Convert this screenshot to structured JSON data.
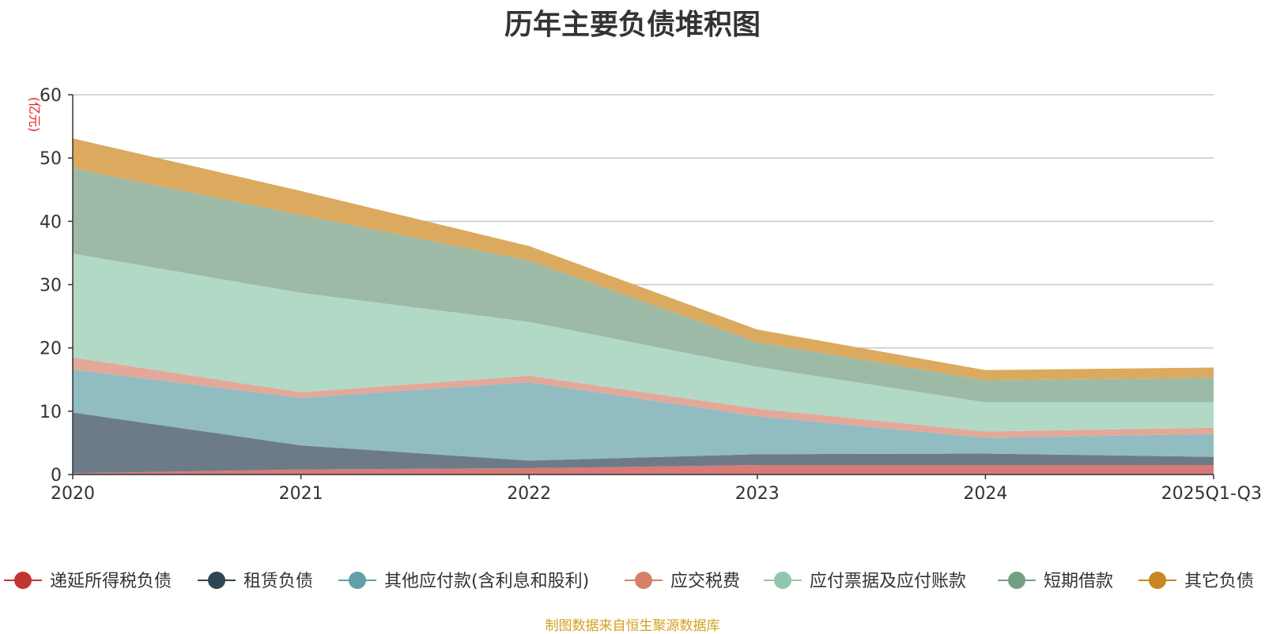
{
  "chart_data": {
    "type": "area",
    "stacked": true,
    "title": "历年主要负债堆积图",
    "unit_label": "(亿元)",
    "ylim": [
      0,
      60
    ],
    "yticks": [
      0,
      10,
      20,
      30,
      40,
      50,
      60
    ],
    "categories": [
      "2020",
      "2021",
      "2022",
      "2023",
      "2024",
      "2025Q1-Q3"
    ],
    "series": [
      {
        "name": "递延所得税负债",
        "color": "#c23531",
        "fill": "#d87a77",
        "values": [
          0.2,
          0.8,
          1.0,
          1.5,
          1.5,
          1.5
        ]
      },
      {
        "name": "租赁负债",
        "color": "#2f4554",
        "fill": "#6d7b87",
        "values": [
          9.6,
          3.8,
          1.2,
          1.7,
          1.8,
          1.3
        ]
      },
      {
        "name": "其他应付款(含利息和股利)",
        "color": "#61a0a8",
        "fill": "#91bcc2",
        "values": [
          6.8,
          7.5,
          12.4,
          6.0,
          2.5,
          3.6
        ]
      },
      {
        "name": "应交税费",
        "color": "#d48265",
        "fill": "#e3a899",
        "values": [
          1.9,
          0.9,
          1.0,
          1.2,
          1.0,
          1.0
        ]
      },
      {
        "name": "应付票据及应付账款",
        "color": "#91c7ae",
        "fill": "#b2d9c6",
        "values": [
          16.4,
          15.7,
          8.5,
          6.6,
          4.6,
          4.0
        ]
      },
      {
        "name": "短期借款",
        "color": "#749f83",
        "fill": "#9dbaa6",
        "values": [
          13.5,
          12.3,
          9.7,
          3.9,
          3.5,
          3.9
        ]
      },
      {
        "name": "其它负债",
        "color": "#ca8622",
        "fill": "#dbaa5f",
        "values": [
          4.7,
          3.8,
          2.3,
          2.0,
          1.6,
          1.6
        ]
      }
    ],
    "legend_position": "bottom",
    "grid": true
  },
  "source_note": "制图数据来自恒生聚源数据库"
}
